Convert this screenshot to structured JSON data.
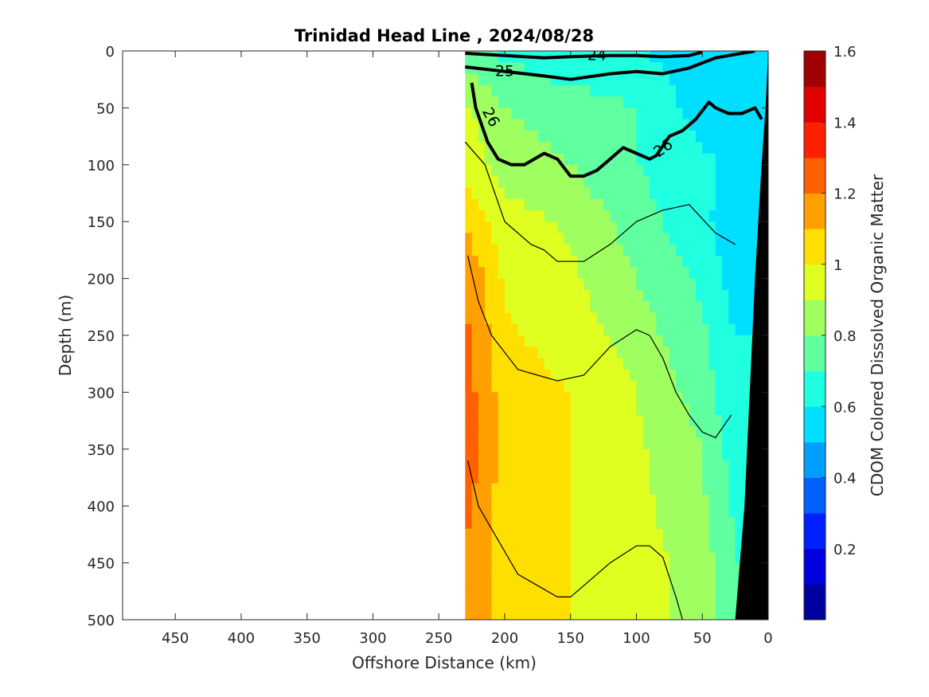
{
  "chart_data": {
    "type": "heatmap",
    "title": "Trinidad Head Line , 2024/08/28",
    "xlabel": "Offshore Distance (km)",
    "ylabel": "Depth (m)",
    "xlim": [
      490,
      0
    ],
    "ylim": [
      0,
      500
    ],
    "x_reversed": true,
    "y_reversed": true,
    "x_ticks": [
      "450",
      "400",
      "350",
      "300",
      "250",
      "200",
      "150",
      "100",
      "50",
      "0"
    ],
    "y_ticks": [
      "0",
      "50",
      "100",
      "150",
      "200",
      "250",
      "300",
      "350",
      "400",
      "450",
      "500"
    ],
    "colorbar": {
      "label": "CDOM Colored Dissolved Organic Matter",
      "range": [
        0,
        1.6
      ],
      "step": 0.1,
      "tick_values": [
        "0.2",
        "0.4",
        "0.6",
        "0.8",
        "1",
        "1.2",
        "1.4",
        "1.6"
      ],
      "colormap": "jet"
    },
    "data_extent_km": [
      230,
      0
    ],
    "field_grid": {
      "distances_km": [
        230,
        200,
        150,
        100,
        50,
        25,
        0
      ],
      "depths_m": [
        0,
        50,
        100,
        150,
        200,
        250,
        300,
        350,
        400,
        450,
        500
      ],
      "values": [
        [
          0.72,
          0.68,
          0.62,
          0.6,
          0.55,
          0.52,
          0.5
        ],
        [
          0.92,
          0.8,
          0.75,
          0.7,
          0.55,
          0.52,
          0.55
        ],
        [
          0.98,
          0.85,
          0.8,
          0.7,
          0.62,
          0.58,
          0.58
        ],
        [
          1.08,
          0.95,
          0.88,
          0.75,
          0.62,
          0.55,
          0.55
        ],
        [
          1.2,
          0.98,
          0.92,
          0.8,
          0.68,
          0.55,
          0.55
        ],
        [
          1.22,
          1.02,
          0.95,
          0.85,
          0.72,
          0.6,
          0.6
        ],
        [
          1.25,
          1.05,
          1.0,
          0.9,
          0.75,
          0.62,
          0.62
        ],
        [
          1.28,
          1.05,
          1.0,
          0.92,
          0.8,
          0.65,
          0.65
        ],
        [
          1.22,
          1.05,
          1.0,
          0.93,
          0.82,
          0.68,
          0.68
        ],
        [
          1.2,
          1.05,
          1.0,
          0.95,
          0.85,
          0.7,
          0.7
        ],
        [
          1.2,
          1.05,
          1.0,
          0.95,
          0.85,
          0.72,
          0.72
        ]
      ]
    },
    "bathymetry_km_at_depth": {
      "depths_m": [
        0,
        50,
        100,
        200,
        300,
        400,
        500
      ],
      "distances_km": [
        0,
        2,
        5,
        10,
        14,
        18,
        25
      ]
    },
    "density_contours": [
      {
        "label": "24",
        "bold": true,
        "x": [
          230,
          200,
          170,
          150,
          120,
          100,
          80,
          60,
          50
        ],
        "y": [
          2,
          4,
          6,
          5,
          4,
          4,
          5,
          4,
          1
        ]
      },
      {
        "label": "25",
        "bold": true,
        "x": [
          230,
          200,
          170,
          150,
          120,
          100,
          80,
          60,
          40,
          20,
          10
        ],
        "y": [
          14,
          18,
          22,
          25,
          20,
          18,
          20,
          15,
          6,
          2,
          0
        ]
      },
      {
        "label": "26",
        "bold": true,
        "x": [
          225,
          222,
          213,
          205,
          195,
          185,
          170,
          160,
          150,
          140,
          130,
          120,
          110,
          100,
          90,
          85,
          75,
          65,
          55,
          45,
          40,
          30,
          20,
          10,
          5
        ],
        "y": [
          28,
          50,
          80,
          95,
          100,
          100,
          90,
          95,
          110,
          110,
          105,
          95,
          85,
          90,
          95,
          92,
          75,
          70,
          60,
          45,
          50,
          55,
          55,
          50,
          60
        ]
      },
      {
        "label": "",
        "bold": false,
        "x": [
          230,
          215,
          200,
          190,
          180,
          170,
          160,
          140,
          120,
          100,
          80,
          60,
          40,
          25
        ],
        "y": [
          80,
          100,
          150,
          160,
          170,
          175,
          185,
          185,
          170,
          150,
          140,
          135,
          160,
          170
        ]
      },
      {
        "label": "",
        "bold": false,
        "x": [
          228,
          220,
          210,
          200,
          190,
          175,
          160,
          140,
          120,
          100,
          90,
          80,
          70,
          60,
          50,
          40,
          28
        ],
        "y": [
          180,
          220,
          250,
          265,
          280,
          285,
          290,
          285,
          260,
          245,
          250,
          270,
          300,
          320,
          335,
          340,
          320
        ]
      },
      {
        "label": "",
        "bold": false,
        "x": [
          228,
          220,
          210,
          200,
          190,
          175,
          160,
          150,
          140,
          120,
          100,
          90,
          80,
          70,
          65
        ],
        "y": [
          360,
          400,
          420,
          440,
          460,
          470,
          480,
          480,
          470,
          450,
          435,
          435,
          445,
          480,
          500
        ]
      }
    ]
  }
}
